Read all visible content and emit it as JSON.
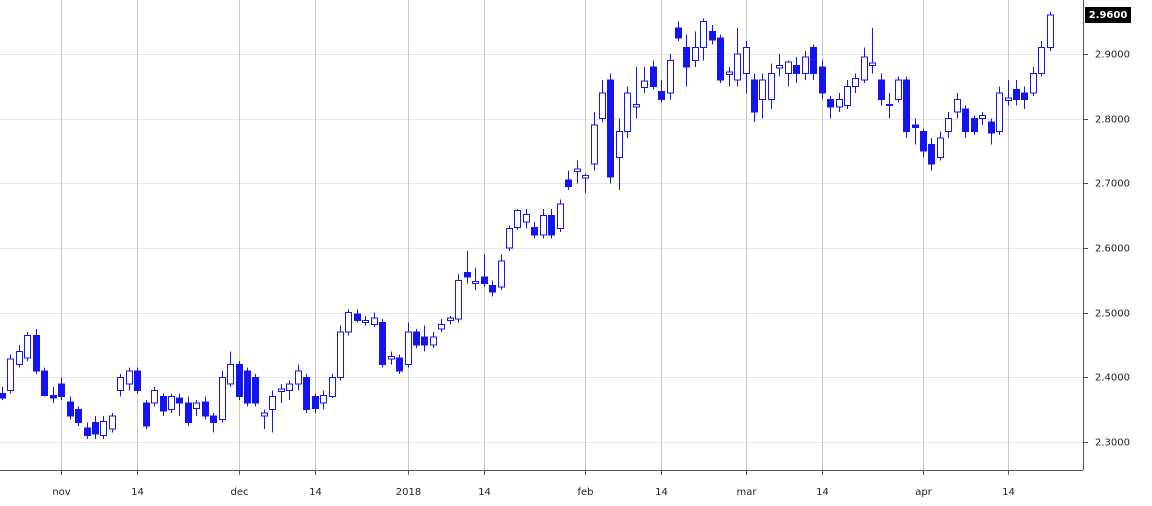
{
  "chart_data": {
    "type": "candlestick",
    "color": "#1414f0",
    "categories": [
      null,
      null,
      null,
      null,
      null,
      null,
      null,
      "nov",
      null,
      null,
      null,
      null,
      null,
      null,
      null,
      null,
      "14",
      null,
      null,
      null,
      null,
      null,
      null,
      null,
      null,
      null,
      null,
      null,
      "dec",
      null,
      null,
      null,
      null,
      null,
      null,
      null,
      null,
      "14",
      null,
      null,
      null,
      null,
      null,
      null,
      null,
      null,
      null,
      null,
      "2018",
      null,
      null,
      null,
      null,
      null,
      null,
      null,
      null,
      "14",
      null,
      null,
      null,
      null,
      null,
      null,
      null,
      null,
      null,
      null,
      null,
      "feb",
      null,
      null,
      null,
      null,
      null,
      null,
      null,
      null,
      "14",
      null,
      null,
      null,
      null,
      null,
      null,
      null,
      null,
      null,
      "mar",
      null,
      null,
      null,
      null,
      null,
      null,
      null,
      null,
      "14",
      null,
      null,
      null,
      null,
      null,
      null,
      null,
      null,
      null,
      null,
      null,
      "apr",
      null,
      null,
      null,
      null,
      null,
      null,
      null,
      null,
      null,
      "14",
      null,
      null,
      null,
      null,
      null
    ],
    "open": [
      2.375,
      2.38,
      2.42,
      2.43,
      2.465,
      2.41,
      2.372,
      2.39,
      2.362,
      2.35,
      2.322,
      2.33,
      2.31,
      2.32,
      2.38,
      2.39,
      2.41,
      2.36,
      2.36,
      2.37,
      2.35,
      2.368,
      2.36,
      2.352,
      2.362,
      2.34,
      2.335,
      2.39,
      2.42,
      2.41,
      2.4,
      2.34,
      2.35,
      2.378,
      2.38,
      2.39,
      2.4,
      2.37,
      2.36,
      2.37,
      2.4,
      2.47,
      2.498,
      2.485,
      2.482,
      2.485,
      2.428,
      2.43,
      2.42,
      2.47,
      2.462,
      2.45,
      2.475,
      2.488,
      2.49,
      2.562,
      2.545,
      2.555,
      2.542,
      2.54,
      2.6,
      2.632,
      2.64,
      2.632,
      2.62,
      2.65,
      2.63,
      2.705,
      2.718,
      2.708,
      2.73,
      2.8,
      2.86,
      2.74,
      2.78,
      2.818,
      2.848,
      2.88,
      2.842,
      2.84,
      2.94,
      2.91,
      2.89,
      2.91,
      2.935,
      2.925,
      2.868,
      2.86,
      2.87,
      2.86,
      2.83,
      2.83,
      2.878,
      2.87,
      2.882,
      2.87,
      2.91,
      2.88,
      2.83,
      2.818,
      2.82,
      2.85,
      2.86,
      2.882,
      2.86,
      2.82,
      2.83,
      2.86,
      2.79,
      2.78,
      2.76,
      2.74,
      2.78,
      2.81,
      2.815,
      2.8,
      2.8,
      2.795,
      2.78,
      2.828,
      2.845,
      2.84,
      2.84,
      2.87,
      2.91
    ],
    "high": [
      2.385,
      2.435,
      2.45,
      2.47,
      2.475,
      2.415,
      2.385,
      2.4,
      2.37,
      2.355,
      2.33,
      2.34,
      2.34,
      2.345,
      2.405,
      2.415,
      2.415,
      2.365,
      2.385,
      2.375,
      2.375,
      2.375,
      2.37,
      2.365,
      2.37,
      2.345,
      2.41,
      2.44,
      2.425,
      2.415,
      2.405,
      2.35,
      2.38,
      2.39,
      2.395,
      2.42,
      2.405,
      2.375,
      2.38,
      2.405,
      2.48,
      2.505,
      2.505,
      2.495,
      2.5,
      2.49,
      2.44,
      2.435,
      2.485,
      2.475,
      2.48,
      2.47,
      2.49,
      2.495,
      2.56,
      2.595,
      2.57,
      2.59,
      2.55,
      2.59,
      2.635,
      2.66,
      2.66,
      2.64,
      2.66,
      2.66,
      2.675,
      2.72,
      2.735,
      2.715,
      2.81,
      2.86,
      2.87,
      2.8,
      2.85,
      2.88,
      2.88,
      2.89,
      2.86,
      2.9,
      2.95,
      2.93,
      2.935,
      2.955,
      2.945,
      2.93,
      2.88,
      2.94,
      2.92,
      2.87,
      2.87,
      2.885,
      2.9,
      2.89,
      2.895,
      2.905,
      2.915,
      2.89,
      2.835,
      2.84,
      2.86,
      2.87,
      2.91,
      2.94,
      2.87,
      2.84,
      2.865,
      2.865,
      2.8,
      2.785,
      2.77,
      2.78,
      2.81,
      2.84,
      2.82,
      2.805,
      2.81,
      2.8,
      2.85,
      2.86,
      2.86,
      2.85,
      2.88,
      2.92,
      2.965
    ],
    "low": [
      2.365,
      2.375,
      2.415,
      2.425,
      2.405,
      2.37,
      2.36,
      2.365,
      2.335,
      2.325,
      2.305,
      2.305,
      2.305,
      2.315,
      2.37,
      2.38,
      2.375,
      2.32,
      2.355,
      2.34,
      2.345,
      2.34,
      2.325,
      2.34,
      2.335,
      2.315,
      2.33,
      2.385,
      2.365,
      2.355,
      2.355,
      2.32,
      2.315,
      2.36,
      2.365,
      2.38,
      2.345,
      2.345,
      2.35,
      2.368,
      2.395,
      2.465,
      2.485,
      2.48,
      2.478,
      2.415,
      2.42,
      2.405,
      2.415,
      2.445,
      2.44,
      2.445,
      2.47,
      2.482,
      2.485,
      2.545,
      2.535,
      2.54,
      2.525,
      2.535,
      2.595,
      2.628,
      2.63,
      2.615,
      2.615,
      2.615,
      2.625,
      2.69,
      2.7,
      2.685,
      2.72,
      2.795,
      2.7,
      2.69,
      2.77,
      2.8,
      2.84,
      2.845,
      2.825,
      2.83,
      2.92,
      2.85,
      2.88,
      2.89,
      2.915,
      2.855,
      2.85,
      2.85,
      2.84,
      2.795,
      2.8,
      2.815,
      2.865,
      2.85,
      2.855,
      2.86,
      2.86,
      2.83,
      2.8,
      2.81,
      2.815,
      2.84,
      2.855,
      2.87,
      2.82,
      2.8,
      2.825,
      2.77,
      2.76,
      2.74,
      2.72,
      2.735,
      2.77,
      2.8,
      2.77,
      2.775,
      2.79,
      2.76,
      2.775,
      2.82,
      2.82,
      2.815,
      2.835,
      2.865,
      2.905
    ],
    "close": [
      2.368,
      2.428,
      2.44,
      2.465,
      2.41,
      2.372,
      2.368,
      2.37,
      2.34,
      2.33,
      2.31,
      2.312,
      2.332,
      2.34,
      2.4,
      2.41,
      2.38,
      2.325,
      2.38,
      2.348,
      2.37,
      2.36,
      2.33,
      2.36,
      2.34,
      2.33,
      2.4,
      2.42,
      2.37,
      2.36,
      2.36,
      2.345,
      2.37,
      2.382,
      2.39,
      2.41,
      2.35,
      2.352,
      2.372,
      2.4,
      2.47,
      2.5,
      2.488,
      2.488,
      2.492,
      2.42,
      2.432,
      2.41,
      2.47,
      2.45,
      2.45,
      2.462,
      2.482,
      2.492,
      2.55,
      2.555,
      2.548,
      2.545,
      2.532,
      2.58,
      2.63,
      2.658,
      2.652,
      2.62,
      2.65,
      2.62,
      2.668,
      2.695,
      2.722,
      2.712,
      2.79,
      2.84,
      2.71,
      2.78,
      2.84,
      2.822,
      2.858,
      2.85,
      2.83,
      2.89,
      2.925,
      2.88,
      2.91,
      2.95,
      2.922,
      2.86,
      2.872,
      2.9,
      2.91,
      2.81,
      2.86,
      2.87,
      2.882,
      2.888,
      2.87,
      2.895,
      2.87,
      2.84,
      2.818,
      2.83,
      2.85,
      2.862,
      2.895,
      2.886,
      2.83,
      2.822,
      2.86,
      2.78,
      2.786,
      2.75,
      2.73,
      2.77,
      2.8,
      2.83,
      2.78,
      2.78,
      2.805,
      2.778,
      2.84,
      2.832,
      2.83,
      2.83,
      2.87,
      2.91,
      2.96
    ],
    "ylim": [
      2.2567,
      2.9835
    ],
    "yticks": [
      {
        "value": 2.3,
        "label": "2.3000"
      },
      {
        "value": 2.4,
        "label": "2.4000"
      },
      {
        "value": 2.5,
        "label": "2.5000"
      },
      {
        "value": 2.6,
        "label": "2.6000"
      },
      {
        "value": 2.7,
        "label": "2.7000"
      },
      {
        "value": 2.8,
        "label": "2.8000"
      },
      {
        "value": 2.9,
        "label": "2.9000"
      }
    ],
    "last_price": {
      "value": 2.96,
      "label": "2.9600"
    },
    "grid": true
  }
}
